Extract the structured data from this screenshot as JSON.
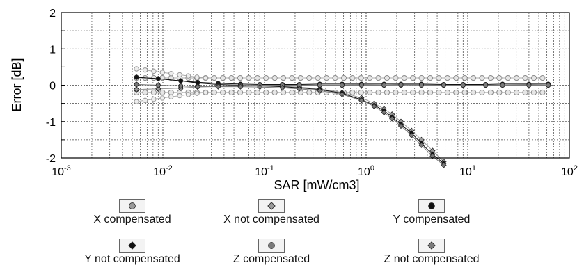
{
  "chart_data": {
    "type": "line",
    "ylabel": "Error [dB]",
    "xlabel": "SAR [mW/cm3]",
    "x_scale": "log",
    "xlim": [
      0.001,
      100
    ],
    "ylim": [
      -2,
      2
    ],
    "y_ticks": [
      "2",
      "1",
      "0",
      "-1",
      "-2"
    ],
    "x_ticks": [
      {
        "base": "10",
        "exp": "-3"
      },
      {
        "base": "10",
        "exp": "-2"
      },
      {
        "base": "10",
        "exp": "-1"
      },
      {
        "base": "10",
        "exp": "0"
      },
      {
        "base": "10",
        "exp": "1"
      },
      {
        "base": "10",
        "exp": "2"
      }
    ],
    "grid": true,
    "tolerance_band": [
      -0.2,
      0.2
    ],
    "series": [
      {
        "name": "X compensated",
        "marker": "circle",
        "color": "#9a9a9a",
        "x": [
          0.0055,
          0.009,
          0.015,
          0.022,
          0.035,
          0.058,
          0.09,
          0.15,
          0.22,
          0.35,
          0.58,
          0.9,
          1.5,
          2.2,
          3.5,
          5.8,
          9,
          15,
          22,
          40,
          62
        ],
        "y": [
          -0.12,
          -0.1,
          -0.08,
          -0.04,
          -0.02,
          -0.01,
          0.0,
          0.0,
          0.01,
          0.0,
          0.0,
          0.01,
          0.0,
          0.0,
          0.01,
          0.0,
          0.0,
          0.0,
          0.0,
          0.01,
          0.0
        ]
      },
      {
        "name": "X not compensated",
        "marker": "diamond",
        "color": "#9a9a9a",
        "x": [
          0.0055,
          0.009,
          0.015,
          0.022,
          0.035,
          0.058,
          0.09,
          0.15,
          0.22,
          0.35,
          0.58,
          0.9,
          1.2,
          1.5,
          1.8,
          2.2,
          2.8,
          3.5,
          4.5,
          5.8
        ],
        "y": [
          -0.12,
          -0.1,
          -0.08,
          -0.05,
          -0.03,
          -0.02,
          -0.02,
          -0.03,
          -0.05,
          -0.1,
          -0.2,
          -0.35,
          -0.5,
          -0.65,
          -0.8,
          -1.0,
          -1.25,
          -1.5,
          -1.8,
          -2.1
        ]
      },
      {
        "name": "Y compensated",
        "marker": "circle",
        "color": "#111111",
        "x": [
          0.0055,
          0.009,
          0.015,
          0.022,
          0.035,
          0.058,
          0.09,
          0.15,
          0.22,
          0.35,
          0.58,
          0.9,
          1.5,
          2.2,
          3.5,
          5.8,
          9,
          15,
          22,
          40,
          62
        ],
        "y": [
          0.22,
          0.18,
          0.12,
          0.08,
          0.05,
          0.03,
          0.02,
          0.02,
          0.02,
          0.03,
          0.03,
          0.03,
          0.03,
          0.03,
          0.03,
          0.02,
          0.02,
          0.02,
          0.03,
          0.03,
          0.03
        ]
      },
      {
        "name": "Y not compensated",
        "marker": "diamond",
        "color": "#111111",
        "x": [
          0.0055,
          0.009,
          0.015,
          0.022,
          0.035,
          0.058,
          0.09,
          0.15,
          0.22,
          0.35,
          0.58,
          0.9,
          1.2,
          1.5,
          1.8,
          2.2,
          2.8,
          3.5,
          4.5,
          5.8
        ],
        "y": [
          0.22,
          0.18,
          0.12,
          0.06,
          0.02,
          0.0,
          -0.02,
          -0.04,
          -0.07,
          -0.12,
          -0.22,
          -0.4,
          -0.55,
          -0.7,
          -0.88,
          -1.08,
          -1.32,
          -1.6,
          -1.9,
          -2.15
        ]
      },
      {
        "name": "Z compensated",
        "marker": "circle",
        "color": "#7a7a7a",
        "x": [
          0.0055,
          0.009,
          0.015,
          0.022,
          0.035,
          0.058,
          0.09,
          0.15,
          0.22,
          0.35,
          0.58,
          0.9,
          1.5,
          2.2,
          3.5,
          5.8,
          9,
          15,
          22,
          40,
          62
        ],
        "y": [
          0.02,
          0.0,
          -0.02,
          -0.03,
          -0.02,
          -0.01,
          0.0,
          0.0,
          0.0,
          0.0,
          0.0,
          0.0,
          0.0,
          0.01,
          0.0,
          0.0,
          0.0,
          0.0,
          0.0,
          0.0,
          0.0
        ]
      },
      {
        "name": "Z not compensated",
        "marker": "diamond",
        "color": "#7a7a7a",
        "x": [
          0.0055,
          0.009,
          0.015,
          0.022,
          0.035,
          0.058,
          0.09,
          0.15,
          0.22,
          0.35,
          0.58,
          0.9,
          1.2,
          1.5,
          1.8,
          2.2,
          2.8,
          3.5,
          4.5,
          5.8
        ],
        "y": [
          0.02,
          0.0,
          -0.02,
          -0.04,
          -0.04,
          -0.04,
          -0.05,
          -0.07,
          -0.1,
          -0.15,
          -0.25,
          -0.42,
          -0.58,
          -0.75,
          -0.92,
          -1.12,
          -1.38,
          -1.65,
          -1.95,
          -2.2
        ]
      }
    ]
  }
}
